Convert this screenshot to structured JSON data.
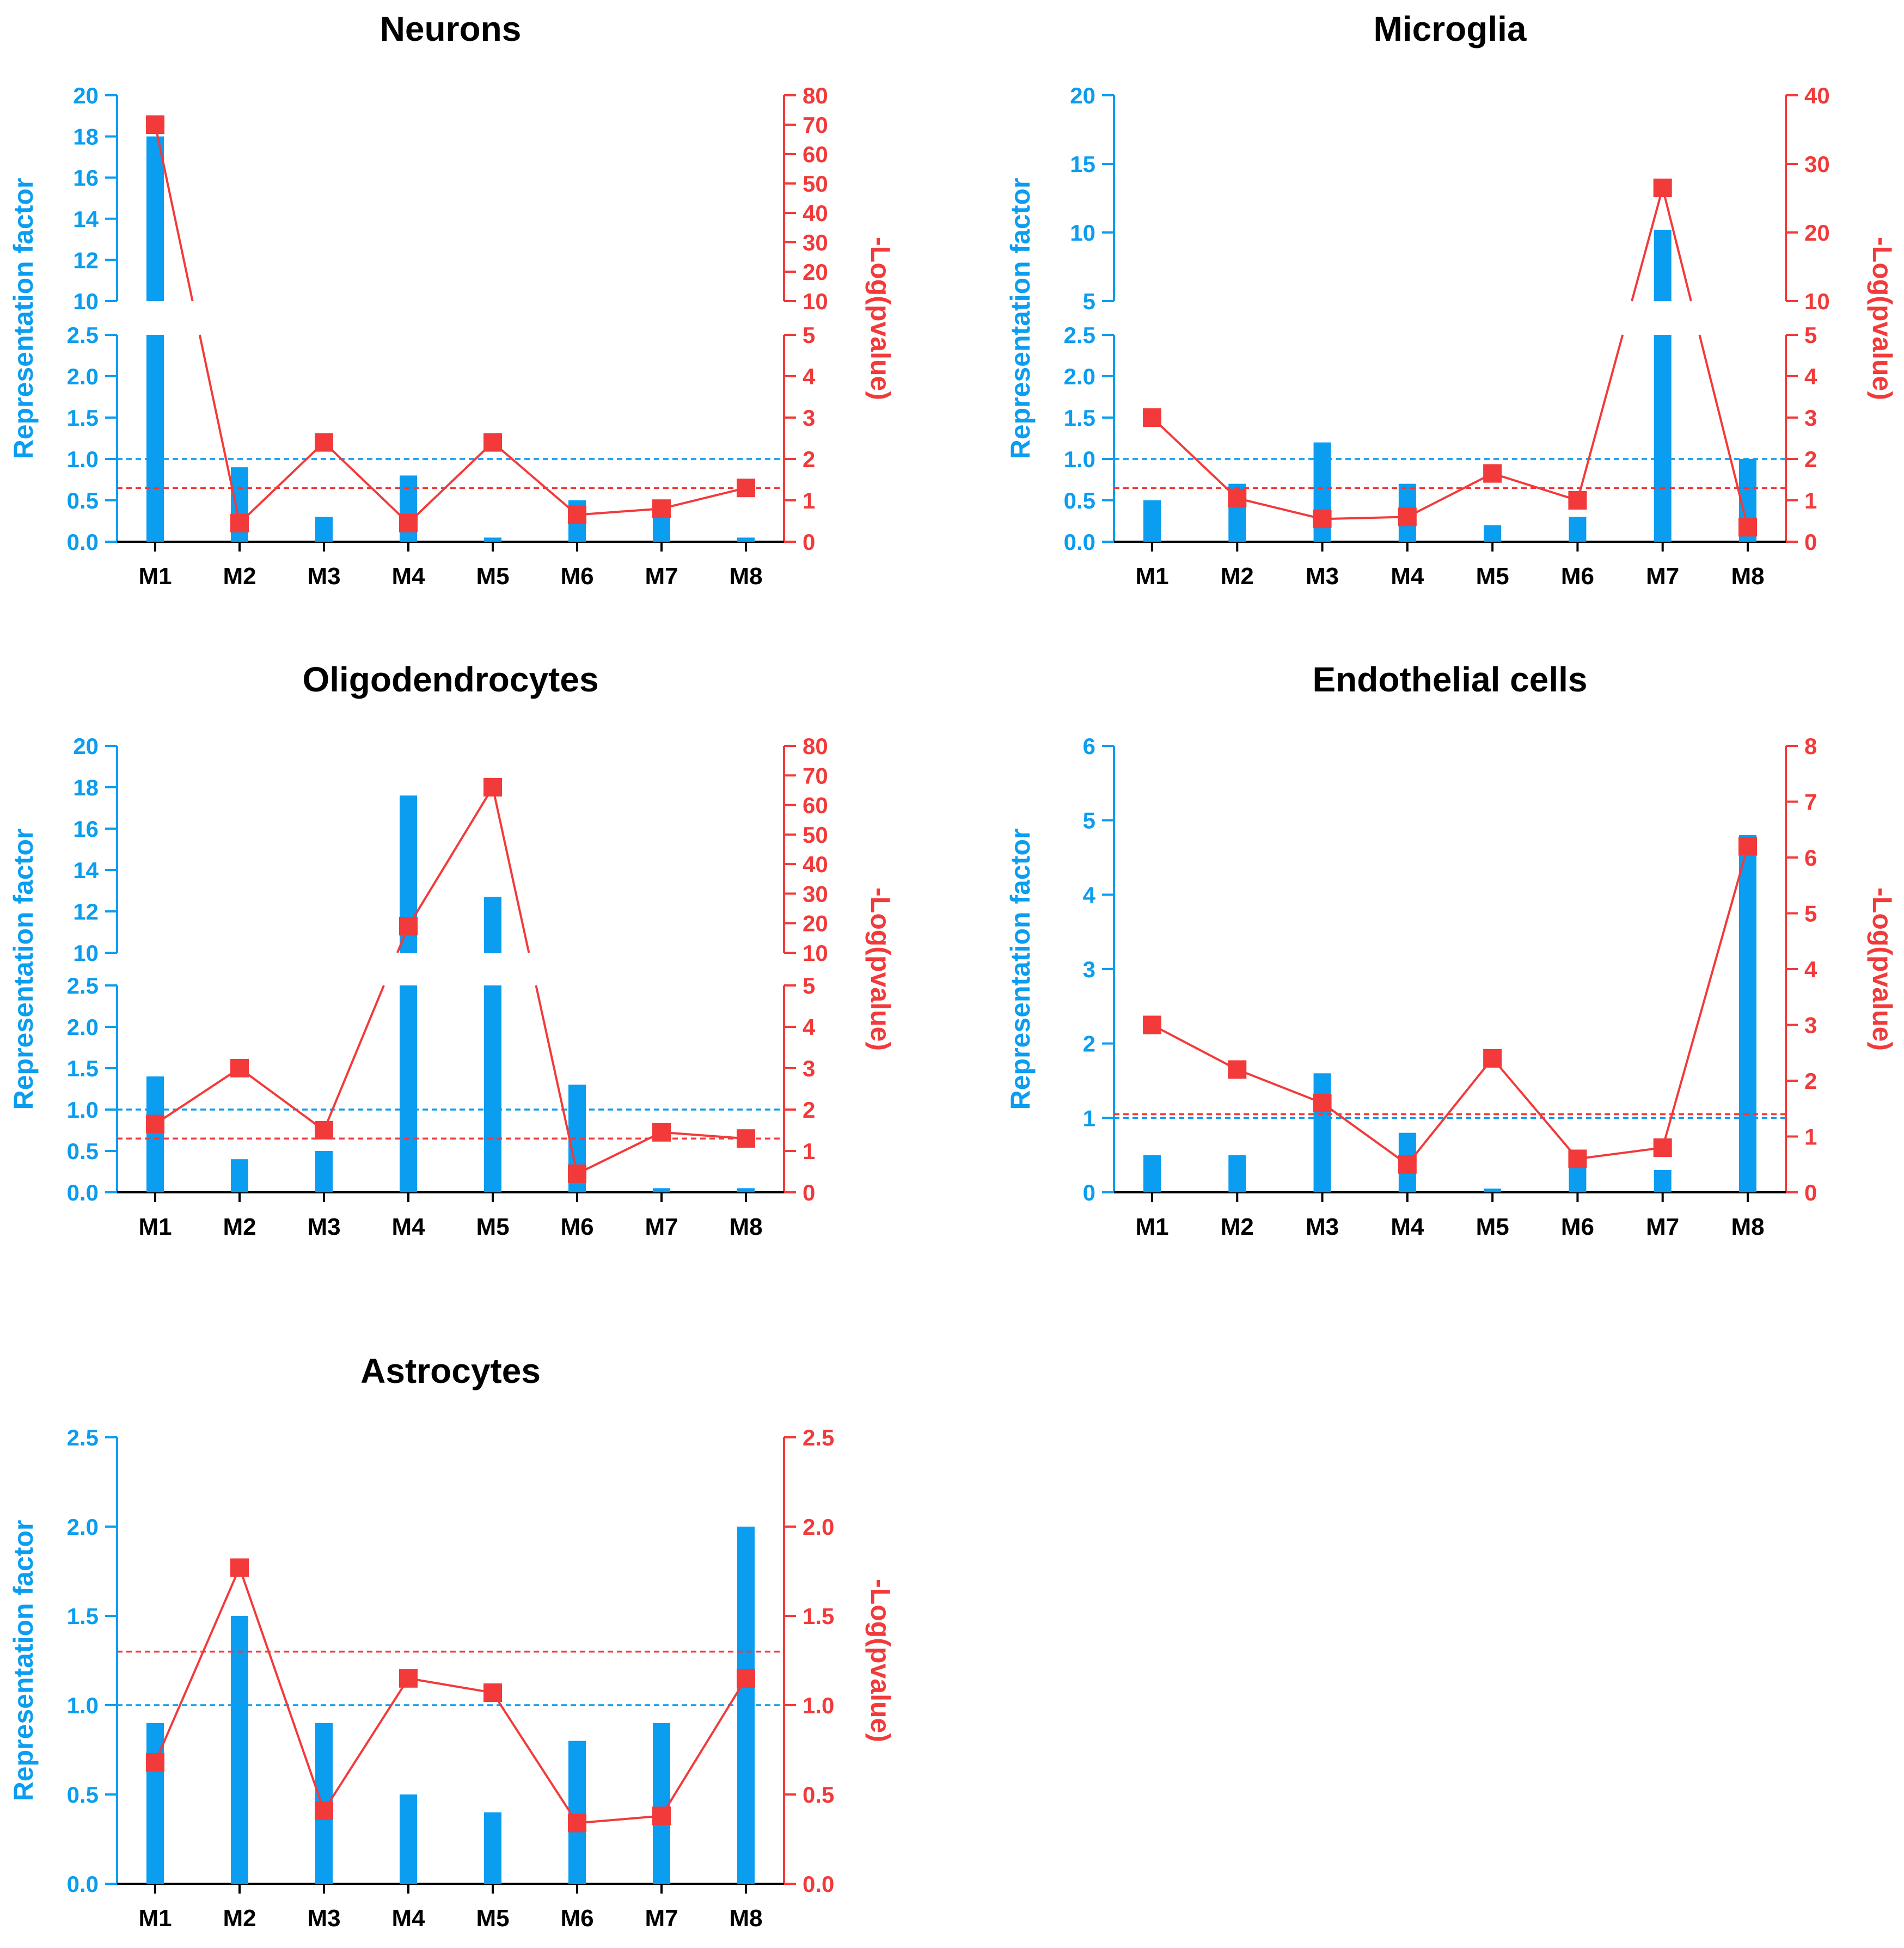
{
  "figure": {
    "colors": {
      "bar": "#0a9df0",
      "line": "#f23a3a",
      "axis_text": "#000000"
    }
  },
  "chart_data": [
    {
      "id": "neurons",
      "type": "bar+line",
      "title": "Neurons",
      "ylabel_left": "Representation factor",
      "ylabel_right": "-Log(pvalue)",
      "categories": [
        "M1",
        "M2",
        "M3",
        "M4",
        "M5",
        "M6",
        "M7",
        "M8"
      ],
      "broken_axis": true,
      "left_axis": {
        "lower": {
          "range": [
            0,
            2.5
          ],
          "ticks": [
            "0.0",
            "0.5",
            "1.0",
            "1.5",
            "2.0",
            "2.5"
          ]
        },
        "upper": {
          "range": [
            10,
            20
          ],
          "ticks": [
            "10",
            "12",
            "14",
            "16",
            "18",
            "20"
          ]
        }
      },
      "right_axis": {
        "lower": {
          "range": [
            0,
            5
          ],
          "ticks": [
            "0",
            "1",
            "2",
            "3",
            "4",
            "5"
          ]
        },
        "upper": {
          "range": [
            10,
            80
          ],
          "ticks": [
            "10",
            "20",
            "30",
            "40",
            "50",
            "60",
            "70",
            "80"
          ]
        }
      },
      "series": [
        {
          "name": "Representation factor",
          "kind": "bar",
          "axis": "left",
          "values": [
            18,
            0.9,
            0.3,
            0.8,
            0.05,
            0.5,
            0.4,
            0.05
          ]
        },
        {
          "name": "-Log(pvalue)",
          "kind": "line",
          "axis": "right",
          "values": [
            70,
            0.45,
            2.4,
            0.45,
            2.4,
            0.65,
            0.8,
            1.3
          ]
        }
      ],
      "reference_lines": [
        {
          "axis": "left",
          "value": 1.0,
          "color": "blue",
          "style": "dashed"
        },
        {
          "axis": "right",
          "value": 1.3,
          "color": "red",
          "style": "dashed"
        }
      ]
    },
    {
      "id": "microglia",
      "type": "bar+line",
      "title": "Microglia",
      "ylabel_left": "Representation factor",
      "ylabel_right": "-Log(pvalue)",
      "categories": [
        "M1",
        "M2",
        "M3",
        "M4",
        "M5",
        "M6",
        "M7",
        "M8"
      ],
      "broken_axis": true,
      "left_axis": {
        "lower": {
          "range": [
            0,
            2.5
          ],
          "ticks": [
            "0.0",
            "0.5",
            "1.0",
            "1.5",
            "2.0",
            "2.5"
          ]
        },
        "upper": {
          "range": [
            5,
            20
          ],
          "ticks": [
            "5",
            "10",
            "15",
            "20"
          ]
        }
      },
      "right_axis": {
        "lower": {
          "range": [
            0,
            5
          ],
          "ticks": [
            "0",
            "1",
            "2",
            "3",
            "4",
            "5"
          ]
        },
        "upper": {
          "range": [
            10,
            40
          ],
          "ticks": [
            "10",
            "20",
            "30",
            "40"
          ]
        }
      },
      "series": [
        {
          "name": "Representation factor",
          "kind": "bar",
          "axis": "left",
          "values": [
            0.5,
            0.7,
            1.2,
            0.7,
            0.2,
            0.3,
            10.2,
            1.0
          ]
        },
        {
          "name": "-Log(pvalue)",
          "kind": "line",
          "axis": "right",
          "values": [
            3.0,
            1.05,
            0.55,
            0.6,
            1.65,
            1.0,
            26.5,
            0.35
          ]
        }
      ],
      "reference_lines": [
        {
          "axis": "left",
          "value": 1.0,
          "color": "blue",
          "style": "dashed"
        },
        {
          "axis": "right",
          "value": 1.3,
          "color": "red",
          "style": "dashed"
        }
      ]
    },
    {
      "id": "oligodendrocytes",
      "type": "bar+line",
      "title": "Oligodendrocytes",
      "ylabel_left": "Representation factor",
      "ylabel_right": "-Log(pvalue)",
      "categories": [
        "M1",
        "M2",
        "M3",
        "M4",
        "M5",
        "M6",
        "M7",
        "M8"
      ],
      "broken_axis": true,
      "left_axis": {
        "lower": {
          "range": [
            0,
            2.5
          ],
          "ticks": [
            "0.0",
            "0.5",
            "1.0",
            "1.5",
            "2.0",
            "2.5"
          ]
        },
        "upper": {
          "range": [
            10,
            20
          ],
          "ticks": [
            "10",
            "12",
            "14",
            "16",
            "18",
            "20"
          ]
        }
      },
      "right_axis": {
        "lower": {
          "range": [
            0,
            5
          ],
          "ticks": [
            "0",
            "1",
            "2",
            "3",
            "4",
            "5"
          ]
        },
        "upper": {
          "range": [
            10,
            80
          ],
          "ticks": [
            "10",
            "20",
            "30",
            "40",
            "50",
            "60",
            "70",
            "80"
          ]
        }
      },
      "series": [
        {
          "name": "Representation factor",
          "kind": "bar",
          "axis": "left",
          "values": [
            1.4,
            0.4,
            0.5,
            17.6,
            12.7,
            1.3,
            0.05,
            0.05
          ]
        },
        {
          "name": "-Log(pvalue)",
          "kind": "line",
          "axis": "right",
          "values": [
            1.65,
            3.0,
            1.5,
            19,
            66,
            0.45,
            1.45,
            1.3
          ]
        }
      ],
      "reference_lines": [
        {
          "axis": "left",
          "value": 1.0,
          "color": "blue",
          "style": "dashed"
        },
        {
          "axis": "right",
          "value": 1.3,
          "color": "red",
          "style": "dashed"
        }
      ]
    },
    {
      "id": "endothelial",
      "type": "bar+line",
      "title": "Endothelial cells",
      "ylabel_left": "Representation factor",
      "ylabel_right": "-Log(pvalue)",
      "categories": [
        "M1",
        "M2",
        "M3",
        "M4",
        "M5",
        "M6",
        "M7",
        "M8"
      ],
      "broken_axis": false,
      "left_axis": {
        "range": [
          0,
          6
        ],
        "ticks": [
          "0",
          "1",
          "2",
          "3",
          "4",
          "5",
          "6"
        ]
      },
      "right_axis": {
        "range": [
          0,
          8
        ],
        "ticks": [
          "0",
          "1",
          "2",
          "3",
          "4",
          "5",
          "6",
          "7",
          "8"
        ]
      },
      "series": [
        {
          "name": "Representation factor",
          "kind": "bar",
          "axis": "left",
          "values": [
            0.5,
            0.5,
            1.6,
            0.8,
            0.05,
            0.45,
            0.3,
            4.8
          ]
        },
        {
          "name": "-Log(pvalue)",
          "kind": "line",
          "axis": "right",
          "values": [
            3.0,
            2.2,
            1.6,
            0.5,
            2.4,
            0.6,
            0.8,
            6.2
          ]
        }
      ],
      "reference_lines": [
        {
          "axis": "left",
          "value": 1.0,
          "color": "blue",
          "style": "dashed"
        },
        {
          "axis": "right",
          "value": 1.4,
          "color": "red",
          "style": "dashed"
        }
      ]
    },
    {
      "id": "astrocytes",
      "type": "bar+line",
      "title": "Astrocytes",
      "ylabel_left": "Representation factor",
      "ylabel_right": "-Log(pvalue)",
      "categories": [
        "M1",
        "M2",
        "M3",
        "M4",
        "M5",
        "M6",
        "M7",
        "M8"
      ],
      "broken_axis": false,
      "left_axis": {
        "range": [
          0,
          2.5
        ],
        "ticks": [
          "0.0",
          "0.5",
          "1.0",
          "1.5",
          "2.0",
          "2.5"
        ]
      },
      "right_axis": {
        "range": [
          0,
          2.5
        ],
        "ticks": [
          "0.0",
          "0.5",
          "1.0",
          "1.5",
          "2.0",
          "2.5"
        ]
      },
      "series": [
        {
          "name": "Representation factor",
          "kind": "bar",
          "axis": "left",
          "values": [
            0.9,
            1.5,
            0.9,
            0.5,
            0.4,
            0.8,
            0.9,
            2.0
          ]
        },
        {
          "name": "-Log(pvalue)",
          "kind": "line",
          "axis": "right",
          "values": [
            0.68,
            1.77,
            0.41,
            1.15,
            1.07,
            0.34,
            0.38,
            1.15
          ]
        }
      ],
      "reference_lines": [
        {
          "axis": "left",
          "value": 1.0,
          "color": "blue",
          "style": "dashed"
        },
        {
          "axis": "right",
          "value": 1.3,
          "color": "red",
          "style": "dashed"
        }
      ]
    }
  ]
}
